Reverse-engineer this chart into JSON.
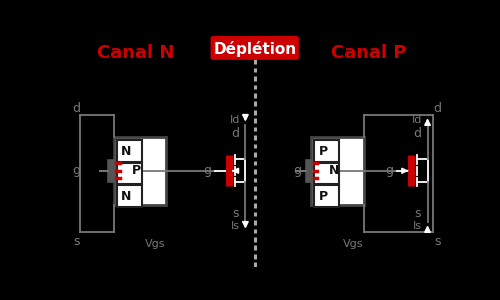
{
  "bg": "#000000",
  "white": "#ffffff",
  "red": "#cc0000",
  "gray": "#777777",
  "border": "#222222",
  "dash_color": "#aaaaaa",
  "canal_n": "Canal N",
  "canal_p": "Canal P",
  "depletion": "Déplétion",
  "lw": 1.3,
  "arrow_scale": 9
}
